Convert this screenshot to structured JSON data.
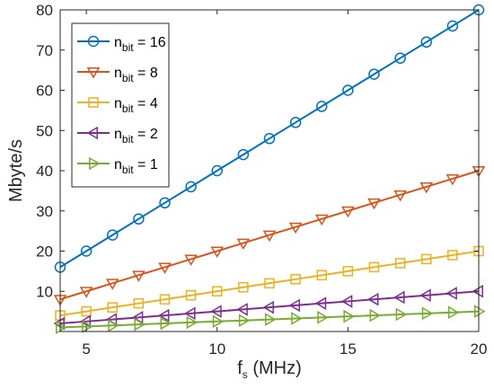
{
  "chart_data": {
    "type": "line",
    "xlabel": "f",
    "xlabel_sub": "s",
    "xlabel_unit": " (MHz)",
    "ylabel": "Mbyte/s",
    "xlim": [
      4,
      20
    ],
    "ylim": [
      0,
      80
    ],
    "xticks": [
      5,
      10,
      15,
      20
    ],
    "yticks": [
      10,
      20,
      30,
      40,
      50,
      60,
      70,
      80
    ],
    "x": [
      4,
      5,
      6,
      7,
      8,
      9,
      10,
      11,
      12,
      13,
      14,
      15,
      16,
      17,
      18,
      19,
      20
    ],
    "legend_position": "top-left",
    "grid": false,
    "series": [
      {
        "name_main": "n",
        "name_sub": "bit",
        "name_rest": " = 16",
        "color": "#0072BD",
        "marker": "circle",
        "values": [
          16,
          20,
          24,
          28,
          32,
          36,
          40,
          44,
          48,
          52,
          56,
          60,
          64,
          68,
          72,
          76,
          80
        ]
      },
      {
        "name_main": "n",
        "name_sub": "bit",
        "name_rest": " = 8",
        "color": "#D95319",
        "marker": "triangle-down",
        "values": [
          8,
          10,
          12,
          14,
          16,
          18,
          20,
          22,
          24,
          26,
          28,
          30,
          32,
          34,
          36,
          38,
          40
        ]
      },
      {
        "name_main": "n",
        "name_sub": "bit",
        "name_rest": " = 4",
        "color": "#EDB120",
        "marker": "square",
        "values": [
          4,
          5,
          6,
          7,
          8,
          9,
          10,
          11,
          12,
          13,
          14,
          15,
          16,
          17,
          18,
          19,
          20
        ]
      },
      {
        "name_main": "n",
        "name_sub": "bit",
        "name_rest": " = 2",
        "color": "#7E2F8E",
        "marker": "triangle-left",
        "values": [
          2,
          2.5,
          3,
          3.5,
          4,
          4.5,
          5,
          5.5,
          6,
          6.5,
          7,
          7.5,
          8,
          8.5,
          9,
          9.5,
          10
        ]
      },
      {
        "name_main": "n",
        "name_sub": "bit",
        "name_rest": " = 1",
        "color": "#77AC30",
        "marker": "triangle-right",
        "values": [
          1,
          1.25,
          1.5,
          1.75,
          2,
          2.25,
          2.5,
          2.75,
          3,
          3.25,
          3.5,
          3.75,
          4,
          4.25,
          4.5,
          4.75,
          5
        ]
      }
    ]
  }
}
